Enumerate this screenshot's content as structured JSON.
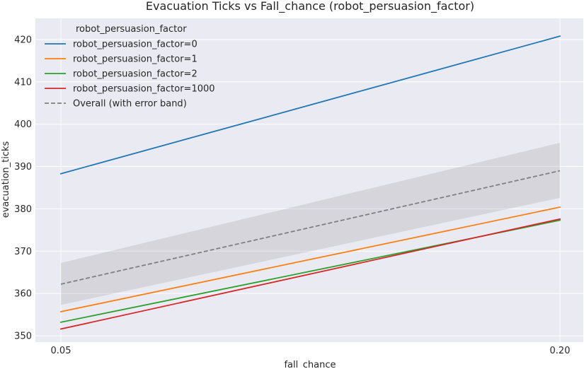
{
  "chart_data": {
    "type": "line",
    "title": "Evacuation Ticks vs Fall_chance (robot_persuasion_factor)",
    "xlabel": "fall_chance",
    "ylabel": "evacuation_ticks",
    "x": [
      0.05,
      0.2
    ],
    "x_tick_labels": [
      "0.05",
      "0.20"
    ],
    "ylim": [
      348.5,
      425
    ],
    "y_ticks": [
      350,
      360,
      370,
      380,
      390,
      400,
      410,
      420
    ],
    "y_tick_labels": [
      "350",
      "360",
      "370",
      "380",
      "390",
      "400",
      "410",
      "420"
    ],
    "grid": true,
    "background": "#eaeaf2",
    "legend": {
      "title": "robot_persuasion_factor",
      "placement": "top-left"
    },
    "series": [
      {
        "name": "robot_persuasion_factor=0",
        "values": [
          388.3,
          420.8
        ],
        "color": "#1f77b4",
        "style": "solid"
      },
      {
        "name": "robot_persuasion_factor=1",
        "values": [
          355.7,
          380.4
        ],
        "color": "#ff7f0e",
        "style": "solid"
      },
      {
        "name": "robot_persuasion_factor=2",
        "values": [
          353.2,
          377.3
        ],
        "color": "#2ca02c",
        "style": "solid"
      },
      {
        "name": "robot_persuasion_factor=1000",
        "values": [
          351.6,
          377.6
        ],
        "color": "#d62728",
        "style": "solid"
      },
      {
        "name": "Overall (with error band)",
        "values": [
          362.2,
          389.0
        ],
        "color": "#808080",
        "style": "dashed",
        "band_lower": [
          357.3,
          382.6
        ],
        "band_upper": [
          367.2,
          395.6
        ]
      }
    ]
  }
}
